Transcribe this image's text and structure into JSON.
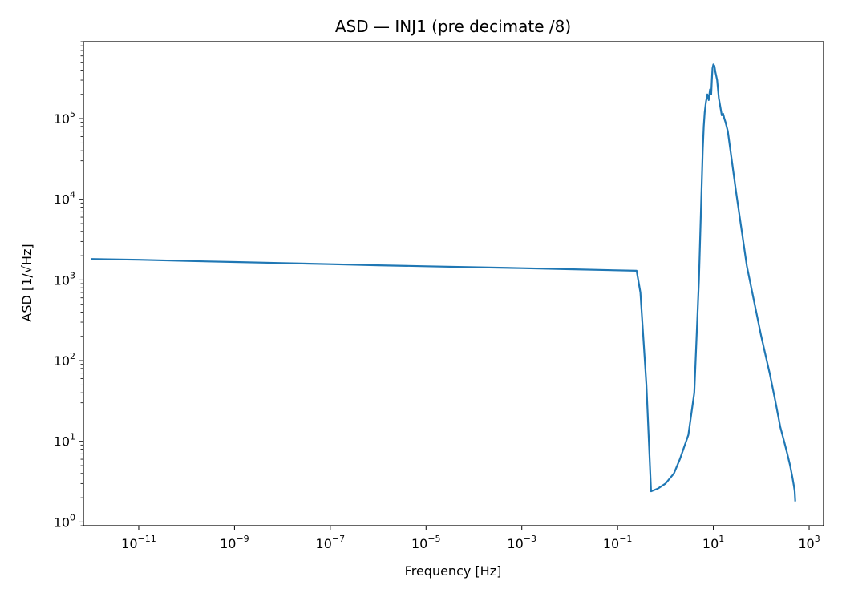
{
  "chart_data": {
    "type": "line",
    "title": "ASD — INJ1 (pre decimate /8)",
    "xlabel": "Frequency [Hz]",
    "ylabel": "ASD [1/√Hz]",
    "x_scale": "log",
    "y_scale": "log",
    "xlim": [
      7e-13,
      2000
    ],
    "ylim": [
      0.9,
      900000
    ],
    "grid": false,
    "x_ticks": [
      {
        "value": 1e-11,
        "base": "10",
        "exp": "−11"
      },
      {
        "value": 1e-09,
        "base": "10",
        "exp": "−9"
      },
      {
        "value": 1e-07,
        "base": "10",
        "exp": "−7"
      },
      {
        "value": 1e-05,
        "base": "10",
        "exp": "−5"
      },
      {
        "value": 0.001,
        "base": "10",
        "exp": "−3"
      },
      {
        "value": 0.1,
        "base": "10",
        "exp": "−1"
      },
      {
        "value": 10,
        "base": "10",
        "exp": "1"
      },
      {
        "value": 1000,
        "base": "10",
        "exp": "3"
      }
    ],
    "y_ticks": [
      {
        "value": 1,
        "base": "10",
        "exp": "0"
      },
      {
        "value": 10,
        "base": "10",
        "exp": "1"
      },
      {
        "value": 100,
        "base": "10",
        "exp": "2"
      },
      {
        "value": 1000,
        "base": "10",
        "exp": "3"
      },
      {
        "value": 10000,
        "base": "10",
        "exp": "4"
      },
      {
        "value": 100000,
        "base": "10",
        "exp": "5"
      }
    ],
    "series": [
      {
        "color": "#1f77b4",
        "x": [
          1e-12,
          1e-11,
          1e-10,
          1e-09,
          1e-08,
          1e-07,
          1e-06,
          1e-05,
          0.0001,
          0.001,
          0.01,
          0.25,
          0.3,
          0.4,
          0.5,
          0.7,
          1.0,
          1.5,
          2.0,
          3.0,
          4.0,
          5.0,
          6.0,
          6.3,
          6.6,
          7.0,
          7.5,
          8.0,
          8.5,
          9.0,
          9.3,
          9.6,
          10.0,
          10.5,
          11.0,
          12.0,
          13.0,
          14.0,
          15.0,
          16.0,
          17.0,
          18.0,
          20.0,
          30.0,
          50.0,
          100.0,
          150.0,
          200.0,
          250.0,
          300.0,
          350.0,
          400.0,
          450.0,
          480.0,
          500.0,
          512.0
        ],
        "y": [
          1820,
          1780,
          1720,
          1670,
          1620,
          1570,
          1520,
          1480,
          1440,
          1400,
          1360,
          1300,
          700,
          50,
          2.4,
          2.6,
          3.0,
          4.0,
          6.0,
          12.0,
          40.0,
          1000,
          40000,
          80000,
          120000,
          160000,
          200000,
          170000,
          230000,
          200000,
          300000,
          420000,
          470000,
          450000,
          380000,
          300000,
          180000,
          140000,
          110000,
          115000,
          100000,
          90000,
          70000,
          12000,
          1500,
          200,
          70,
          30,
          15,
          10,
          7,
          5,
          3.5,
          2.8,
          2.4,
          1.8
        ]
      }
    ]
  }
}
